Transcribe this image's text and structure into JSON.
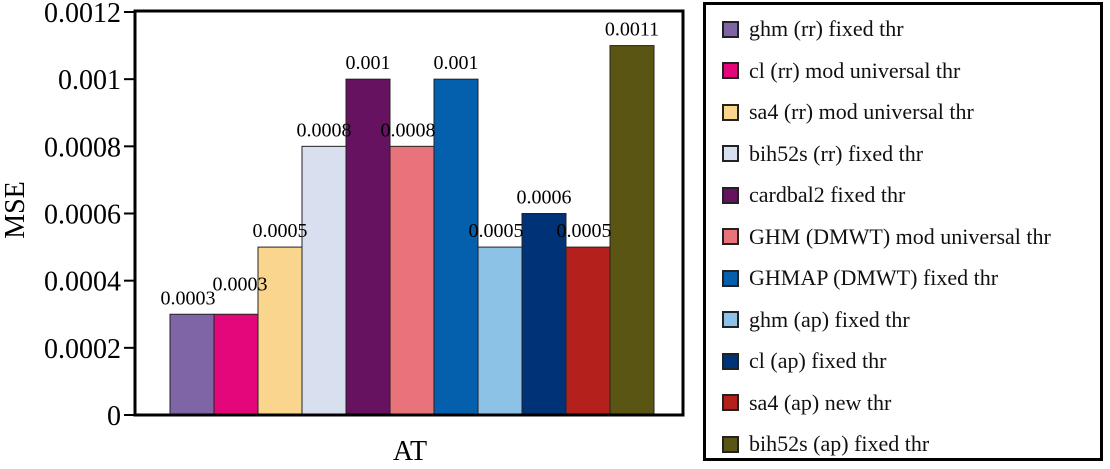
{
  "chart_data": {
    "type": "bar",
    "title": "",
    "xlabel": "AT",
    "ylabel": "MSE",
    "ylim": [
      0,
      0.0012
    ],
    "yticks": [
      "0",
      "0.0002",
      "0.0004",
      "0.0006",
      "0.0008",
      "0.001",
      "0.0012"
    ],
    "grid": false,
    "legend_position": "right",
    "series": [
      {
        "name": "ghm (rr) fixed thr",
        "value": 0.0003,
        "label": "0.0003",
        "color": "#7f65a6"
      },
      {
        "name": "cl (rr) mod universal thr",
        "value": 0.0003,
        "label": "0.0003",
        "color": "#e3077b"
      },
      {
        "name": "sa4 (rr) mod universal thr",
        "value": 0.0005,
        "label": "0.0005",
        "color": "#fad58e"
      },
      {
        "name": "bih52s (rr) fixed thr",
        "value": 0.0008,
        "label": "0.0008",
        "color": "#d8e0f0"
      },
      {
        "name": "cardbal2 fixed thr",
        "value": 0.001,
        "label": "0.001",
        "color": "#661260"
      },
      {
        "name": "GHM (DMWT) mod universal thr",
        "value": 0.0008,
        "label": "0.0008",
        "color": "#e9737a"
      },
      {
        "name": "GHMAP (DMWT) fixed thr",
        "value": 0.001,
        "label": "0.001",
        "color": "#045fac"
      },
      {
        "name": "ghm (ap) fixed thr",
        "value": 0.0005,
        "label": "0.0005",
        "color": "#8bc2e6"
      },
      {
        "name": "cl (ap) fixed thr",
        "value": 0.0006,
        "label": "0.0006",
        "color": "#003278"
      },
      {
        "name": "sa4 (ap) new thr",
        "value": 0.0005,
        "label": "0.0005",
        "color": "#b4211d"
      },
      {
        "name": "bih52s (ap) fixed thr",
        "value": 0.0011,
        "label": "0.0011",
        "color": "#5b5513"
      }
    ]
  }
}
